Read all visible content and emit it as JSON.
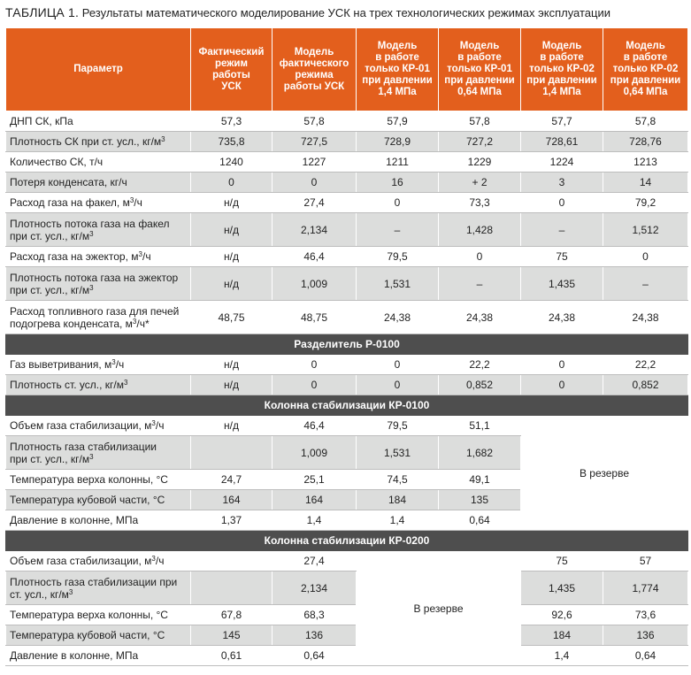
{
  "caption": {
    "label": "ТАБЛИЦА 1.",
    "text": "Результаты математического моделирование УСК на трех технологических режимах эксплуатации"
  },
  "headers": [
    [
      "Параметр"
    ],
    [
      "Фактический",
      "режим",
      "работы",
      "УСК"
    ],
    [
      "Модель",
      "фактического",
      "режима",
      "работы УСК"
    ],
    [
      "Модель",
      "в работе",
      "только КР-01",
      "при давлении",
      "1,4 МПа"
    ],
    [
      "Модель",
      "в работе",
      "только КР-01",
      "при давлении",
      "0,64 МПа"
    ],
    [
      "Модель",
      "в работе",
      "только КР-02",
      "при давлении",
      "1,4 МПа"
    ],
    [
      "Модель",
      "в работе",
      "только КР-02",
      "при давлении",
      "0,64 МПа"
    ]
  ],
  "sections": {
    "s1": "Разделитель Р-0100",
    "s2": "Колонна стабилизации КР-0100",
    "s3": "Колонна стабилизации КР-0200"
  },
  "reserve": {
    "kr0100": "В резерве",
    "kr0200": "В резерве"
  },
  "rows": [
    {
      "p": [
        "ДНП СК, кПа"
      ],
      "v": [
        "57,3",
        "57,8",
        "57,9",
        "57,8",
        "57,7",
        "57,8"
      ]
    },
    {
      "p": [
        "Плотность СК при ст. усл., кг/м",
        "3",
        ""
      ],
      "v": [
        "735,8",
        "727,5",
        "728,9",
        "727,2",
        "728,61",
        "728,76"
      ]
    },
    {
      "p": [
        "Количество СК, т/ч"
      ],
      "v": [
        "1240",
        "1227",
        "1211",
        "1229",
        "1224",
        "1213"
      ]
    },
    {
      "p": [
        "Потеря конденсата, кг/ч"
      ],
      "v": [
        "0",
        "0",
        "16",
        "+ 2",
        "3",
        "14"
      ]
    },
    {
      "p": [
        "Расход газа на факел, м",
        "3",
        "/ч"
      ],
      "v": [
        "н/д",
        "27,4",
        "0",
        "73,3",
        "0",
        "79,2"
      ]
    },
    {
      "p": [
        "Плотность потока газа на факел",
        "при ст. усл., кг/м",
        "3"
      ],
      "v": [
        "н/д",
        "2,134",
        "–",
        "1,428",
        "–",
        "1,512"
      ]
    },
    {
      "p": [
        "Расход газа на эжектор, м",
        "3",
        "/ч"
      ],
      "v": [
        "н/д",
        "46,4",
        "79,5",
        "0",
        "75",
        "0"
      ]
    },
    {
      "p": [
        "Плотность потока газа на эжектор",
        "при ст. усл., кг/м",
        "3"
      ],
      "v": [
        "н/д",
        "1,009",
        "1,531",
        "–",
        "1,435",
        "–"
      ]
    },
    {
      "p": [
        "Расход топливного газа для печей",
        "подогрева конденсата, м",
        "3",
        "/ч*"
      ],
      "v": [
        "48,75",
        "48,75",
        "24,38",
        "24,38",
        "24,38",
        "24,38"
      ]
    },
    {
      "p": [
        "Газ выветривания, м",
        "3",
        "/ч"
      ],
      "v": [
        "н/д",
        "0",
        "0",
        "22,2",
        "0",
        "22,2"
      ]
    },
    {
      "p": [
        "Плотность ст. усл., кг/м",
        "3",
        ""
      ],
      "v": [
        "н/д",
        "0",
        "0",
        "0,852",
        "0",
        "0,852"
      ]
    },
    {
      "p": [
        "Объем газа стабилизации, м",
        "3",
        "/ч"
      ],
      "v": [
        "н/д",
        "46,4",
        "79,5",
        "51,1"
      ]
    },
    {
      "p": [
        "Плотность газа стабилизации",
        "при ст. усл., кг/м",
        "3"
      ],
      "v": [
        "",
        "1,009",
        "1,531",
        "1,682"
      ]
    },
    {
      "p": [
        "Температура верха колонны, °С"
      ],
      "v": [
        "24,7",
        "25,1",
        "74,5",
        "49,1"
      ]
    },
    {
      "p": [
        "Температура кубовой части, °С"
      ],
      "v": [
        "164",
        "164",
        "184",
        "135"
      ]
    },
    {
      "p": [
        "Давление в колонне, МПа"
      ],
      "v": [
        "1,37",
        "1,4",
        "1,4",
        "0,64"
      ]
    },
    {
      "p": [
        "Объем газа стабилизации, м",
        "3",
        "/ч"
      ],
      "v": [
        "",
        "27,4",
        "75",
        "57"
      ]
    },
    {
      "p": [
        "Плотность газа стабилизации при",
        "ст. усл., кг/м",
        "3"
      ],
      "v": [
        "",
        "2,134",
        "1,435",
        "1,774"
      ]
    },
    {
      "p": [
        "Температура верха колонны, °С"
      ],
      "v": [
        "67,8",
        "68,3",
        "92,6",
        "73,6"
      ]
    },
    {
      "p": [
        "Температура кубовой части, °С"
      ],
      "v": [
        "145",
        "136",
        "184",
        "136"
      ]
    },
    {
      "p": [
        "Давление в колонне, МПа"
      ],
      "v": [
        "0,61",
        "0,64",
        "1,4",
        "0,64"
      ]
    }
  ]
}
